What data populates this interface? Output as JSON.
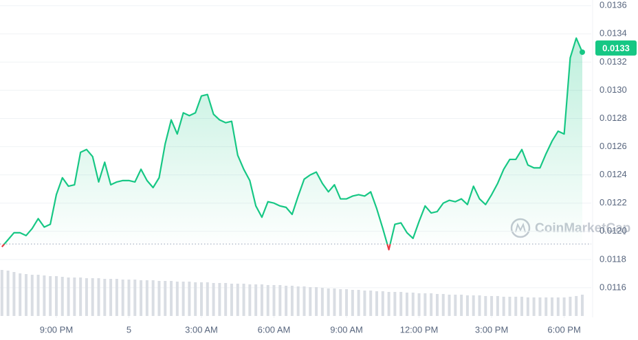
{
  "chart_data": {
    "type": "line",
    "color": "#16c784",
    "down_color": "#ea3943",
    "x": [
      18.75,
      19,
      19.25,
      19.5,
      19.75,
      20,
      20.25,
      20.5,
      20.75,
      21,
      21.25,
      21.5,
      21.75,
      22,
      22.25,
      22.5,
      22.75,
      23,
      23.25,
      23.5,
      23.75,
      24,
      24.25,
      24.5,
      24.75,
      25,
      25.25,
      25.5,
      25.75,
      26,
      26.25,
      26.5,
      26.75,
      27,
      27.25,
      27.5,
      27.75,
      28,
      28.25,
      28.5,
      28.75,
      29,
      29.25,
      29.5,
      29.75,
      30,
      30.25,
      30.5,
      30.75,
      31,
      31.25,
      31.5,
      31.75,
      32,
      32.25,
      32.5,
      32.75,
      33,
      33.25,
      33.5,
      33.75,
      34,
      34.25,
      34.5,
      34.75,
      35,
      35.25,
      35.5,
      35.75,
      36,
      36.25,
      36.5,
      36.75,
      37,
      37.25,
      37.5,
      37.75,
      38,
      38.25,
      38.5,
      38.75,
      39,
      39.25,
      39.5,
      39.75,
      40,
      40.25,
      40.5,
      40.75,
      41,
      41.25,
      41.5,
      41.75,
      42,
      42.25,
      42.5,
      42.75
    ],
    "values": [
      0.01189,
      0.01194,
      0.01199,
      0.01199,
      0.01197,
      0.01202,
      0.01209,
      0.01203,
      0.01205,
      0.01226,
      0.01238,
      0.01232,
      0.01233,
      0.01256,
      0.01258,
      0.01253,
      0.01235,
      0.01249,
      0.01233,
      0.01235,
      0.01236,
      0.01236,
      0.01235,
      0.01244,
      0.01236,
      0.01231,
      0.01238,
      0.01262,
      0.01279,
      0.01269,
      0.01284,
      0.01282,
      0.01284,
      0.01296,
      0.01297,
      0.01283,
      0.01279,
      0.01277,
      0.01278,
      0.01254,
      0.01244,
      0.01236,
      0.01218,
      0.0121,
      0.01221,
      0.0122,
      0.01218,
      0.01217,
      0.01212,
      0.01225,
      0.01237,
      0.0124,
      0.01242,
      0.01234,
      0.01228,
      0.01233,
      0.01223,
      0.01223,
      0.01225,
      0.01226,
      0.01225,
      0.01228,
      0.01216,
      0.01202,
      0.01187,
      0.01205,
      0.01206,
      0.01199,
      0.01195,
      0.01207,
      0.01218,
      0.01213,
      0.01214,
      0.0122,
      0.01222,
      0.01221,
      0.01223,
      0.01219,
      0.01232,
      0.01223,
      0.01219,
      0.01226,
      0.01234,
      0.01244,
      0.01251,
      0.01251,
      0.01258,
      0.01247,
      0.01245,
      0.01245,
      0.01255,
      0.01264,
      0.01271,
      0.01269,
      0.01323,
      0.01337,
      0.01327
    ],
    "reference_price": 0.01191,
    "current_price": 0.0133,
    "volume": {
      "values": [
        67,
        66,
        64,
        62,
        61,
        60,
        60,
        59,
        58,
        58,
        57,
        56,
        56,
        56,
        55,
        55,
        55,
        54,
        54,
        54,
        53,
        53,
        53,
        52,
        52,
        52,
        51,
        51,
        51,
        50,
        50,
        50,
        49,
        49,
        49,
        48,
        48,
        48,
        47,
        47,
        47,
        46,
        46,
        46,
        45,
        45,
        45,
        44,
        44,
        43,
        43,
        42,
        42,
        41,
        40,
        40,
        39,
        39,
        38,
        38,
        37,
        37,
        36,
        36,
        35,
        35,
        35,
        34,
        34,
        33,
        33,
        33,
        32,
        32,
        31,
        31,
        31,
        30,
        30,
        30,
        29,
        29,
        29,
        28,
        28,
        28,
        28,
        27,
        27,
        27,
        27,
        27,
        27,
        27,
        28,
        29,
        31
      ],
      "lim": [
        0,
        100
      ],
      "color": "#d9dde3"
    },
    "xlim": [
      18.67,
      43.12
    ],
    "xticks": [
      {
        "value": 21,
        "label": "9:00 PM"
      },
      {
        "value": 24,
        "label": "5"
      },
      {
        "value": 27,
        "label": "3:00 AM"
      },
      {
        "value": 30,
        "label": "6:00 AM"
      },
      {
        "value": 33,
        "label": "9:00 AM"
      },
      {
        "value": 36,
        "label": "12:00 PM"
      },
      {
        "value": 39,
        "label": "3:00 PM"
      },
      {
        "value": 42,
        "label": "6:00 PM"
      }
    ],
    "ylim": [
      0.0114,
      0.01364
    ],
    "yticks": [
      0.0116,
      0.0118,
      {
        "value": 0.012,
        "label": "0.0120"
      },
      0.0122,
      0.0124,
      0.0126,
      0.0128,
      {
        "value": 0.013,
        "label": "0.0130"
      },
      0.0132,
      0.0134,
      0.0136
    ],
    "grid": true,
    "watermark": "CoinMarketCap"
  }
}
